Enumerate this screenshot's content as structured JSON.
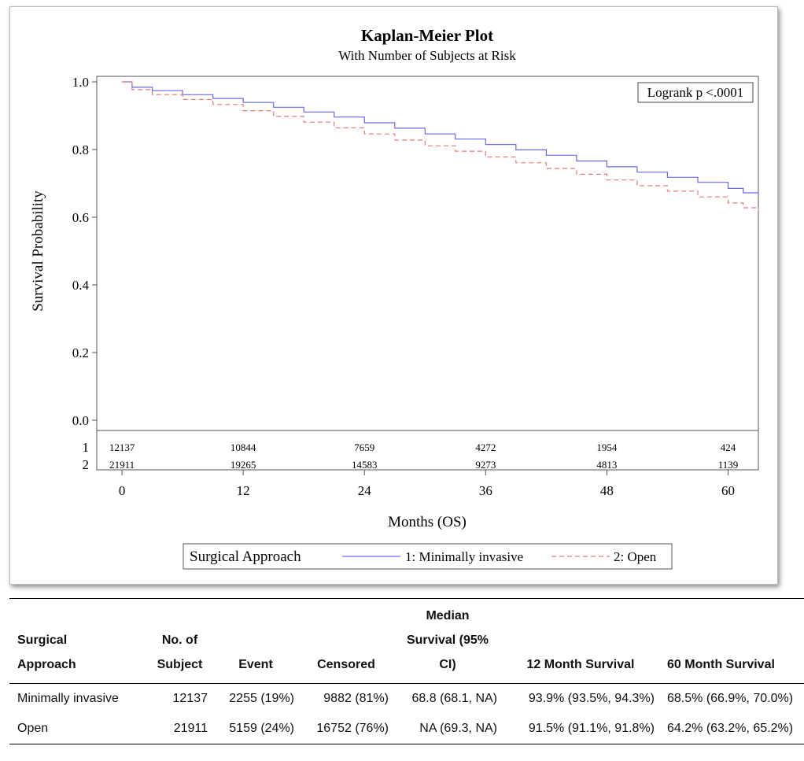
{
  "chart_data": {
    "type": "line",
    "title": "Kaplan-Meier Plot",
    "subtitle": "With Number of Subjects at Risk",
    "xlabel": "Months (OS)",
    "ylabel": "Survival Probability",
    "xlim": [
      -2.5,
      63
    ],
    "ylim": [
      0,
      1
    ],
    "xticks": [
      0,
      12,
      24,
      36,
      48,
      60
    ],
    "yticks": [
      "0.0",
      "0.2",
      "0.4",
      "0.6",
      "0.8",
      "1.0"
    ],
    "annotation": "Logrank p <.0001",
    "legend_title": "Surgical Approach",
    "legend_position": "bottom",
    "series": [
      {
        "name": "1: Minimally invasive",
        "color": "#6a6ae8",
        "dash": "solid",
        "points": [
          [
            0,
            1.0
          ],
          [
            1,
            0.984
          ],
          [
            3,
            0.974
          ],
          [
            6,
            0.962
          ],
          [
            9,
            0.951
          ],
          [
            12,
            0.939
          ],
          [
            15,
            0.925
          ],
          [
            18,
            0.911
          ],
          [
            21,
            0.896
          ],
          [
            24,
            0.879
          ],
          [
            27,
            0.863
          ],
          [
            30,
            0.846
          ],
          [
            33,
            0.831
          ],
          [
            36,
            0.815
          ],
          [
            39,
            0.799
          ],
          [
            42,
            0.783
          ],
          [
            45,
            0.766
          ],
          [
            48,
            0.749
          ],
          [
            51,
            0.733
          ],
          [
            54,
            0.718
          ],
          [
            57,
            0.703
          ],
          [
            60,
            0.685
          ],
          [
            61.5,
            0.672
          ],
          [
            63,
            0.668
          ]
        ]
      },
      {
        "name": "2: Open",
        "color": "#e87a7a",
        "dash": "dashed",
        "points": [
          [
            0,
            1.0
          ],
          [
            1,
            0.977
          ],
          [
            3,
            0.962
          ],
          [
            6,
            0.948
          ],
          [
            9,
            0.933
          ],
          [
            12,
            0.915
          ],
          [
            15,
            0.898
          ],
          [
            18,
            0.881
          ],
          [
            21,
            0.864
          ],
          [
            24,
            0.846
          ],
          [
            27,
            0.828
          ],
          [
            30,
            0.811
          ],
          [
            33,
            0.795
          ],
          [
            36,
            0.778
          ],
          [
            39,
            0.761
          ],
          [
            42,
            0.744
          ],
          [
            45,
            0.727
          ],
          [
            48,
            0.71
          ],
          [
            51,
            0.693
          ],
          [
            54,
            0.677
          ],
          [
            57,
            0.66
          ],
          [
            60,
            0.642
          ],
          [
            61.5,
            0.628
          ],
          [
            63,
            0.618
          ]
        ]
      }
    ],
    "at_risk": {
      "times": [
        0,
        12,
        24,
        36,
        48,
        60
      ],
      "rows": [
        {
          "label": "1",
          "counts": [
            "12137",
            "10844",
            "7659",
            "4272",
            "1954",
            "424"
          ]
        },
        {
          "label": "2",
          "counts": [
            "21911",
            "19265",
            "14583",
            "9273",
            "4813",
            "1139"
          ]
        }
      ]
    }
  },
  "stats_table": {
    "headers": {
      "approach": [
        "Surgical",
        "Approach"
      ],
      "subjects": [
        "No. of",
        "Subject"
      ],
      "event": [
        "Event"
      ],
      "censored": [
        "Censored"
      ],
      "median": [
        "Median",
        "Survival (95%",
        "CI)"
      ],
      "m12": [
        "12 Month Survival"
      ],
      "m60": [
        "60 Month Survival"
      ]
    },
    "rows": [
      {
        "approach": "Minimally invasive",
        "subjects": "12137",
        "event": "2255 (19%)",
        "censored": "9882 (81%)",
        "median": "68.8 (68.1, NA)",
        "m12": "93.9% (93.5%, 94.3%)",
        "m60": "68.5% (66.9%, 70.0%)"
      },
      {
        "approach": "Open",
        "subjects": "21911",
        "event": "5159 (24%)",
        "censored": "16752 (76%)",
        "median": "NA (69.3, NA)",
        "m12": "91.5% (91.1%, 91.8%)",
        "m60": "64.2% (63.2%, 65.2%)"
      }
    ]
  }
}
